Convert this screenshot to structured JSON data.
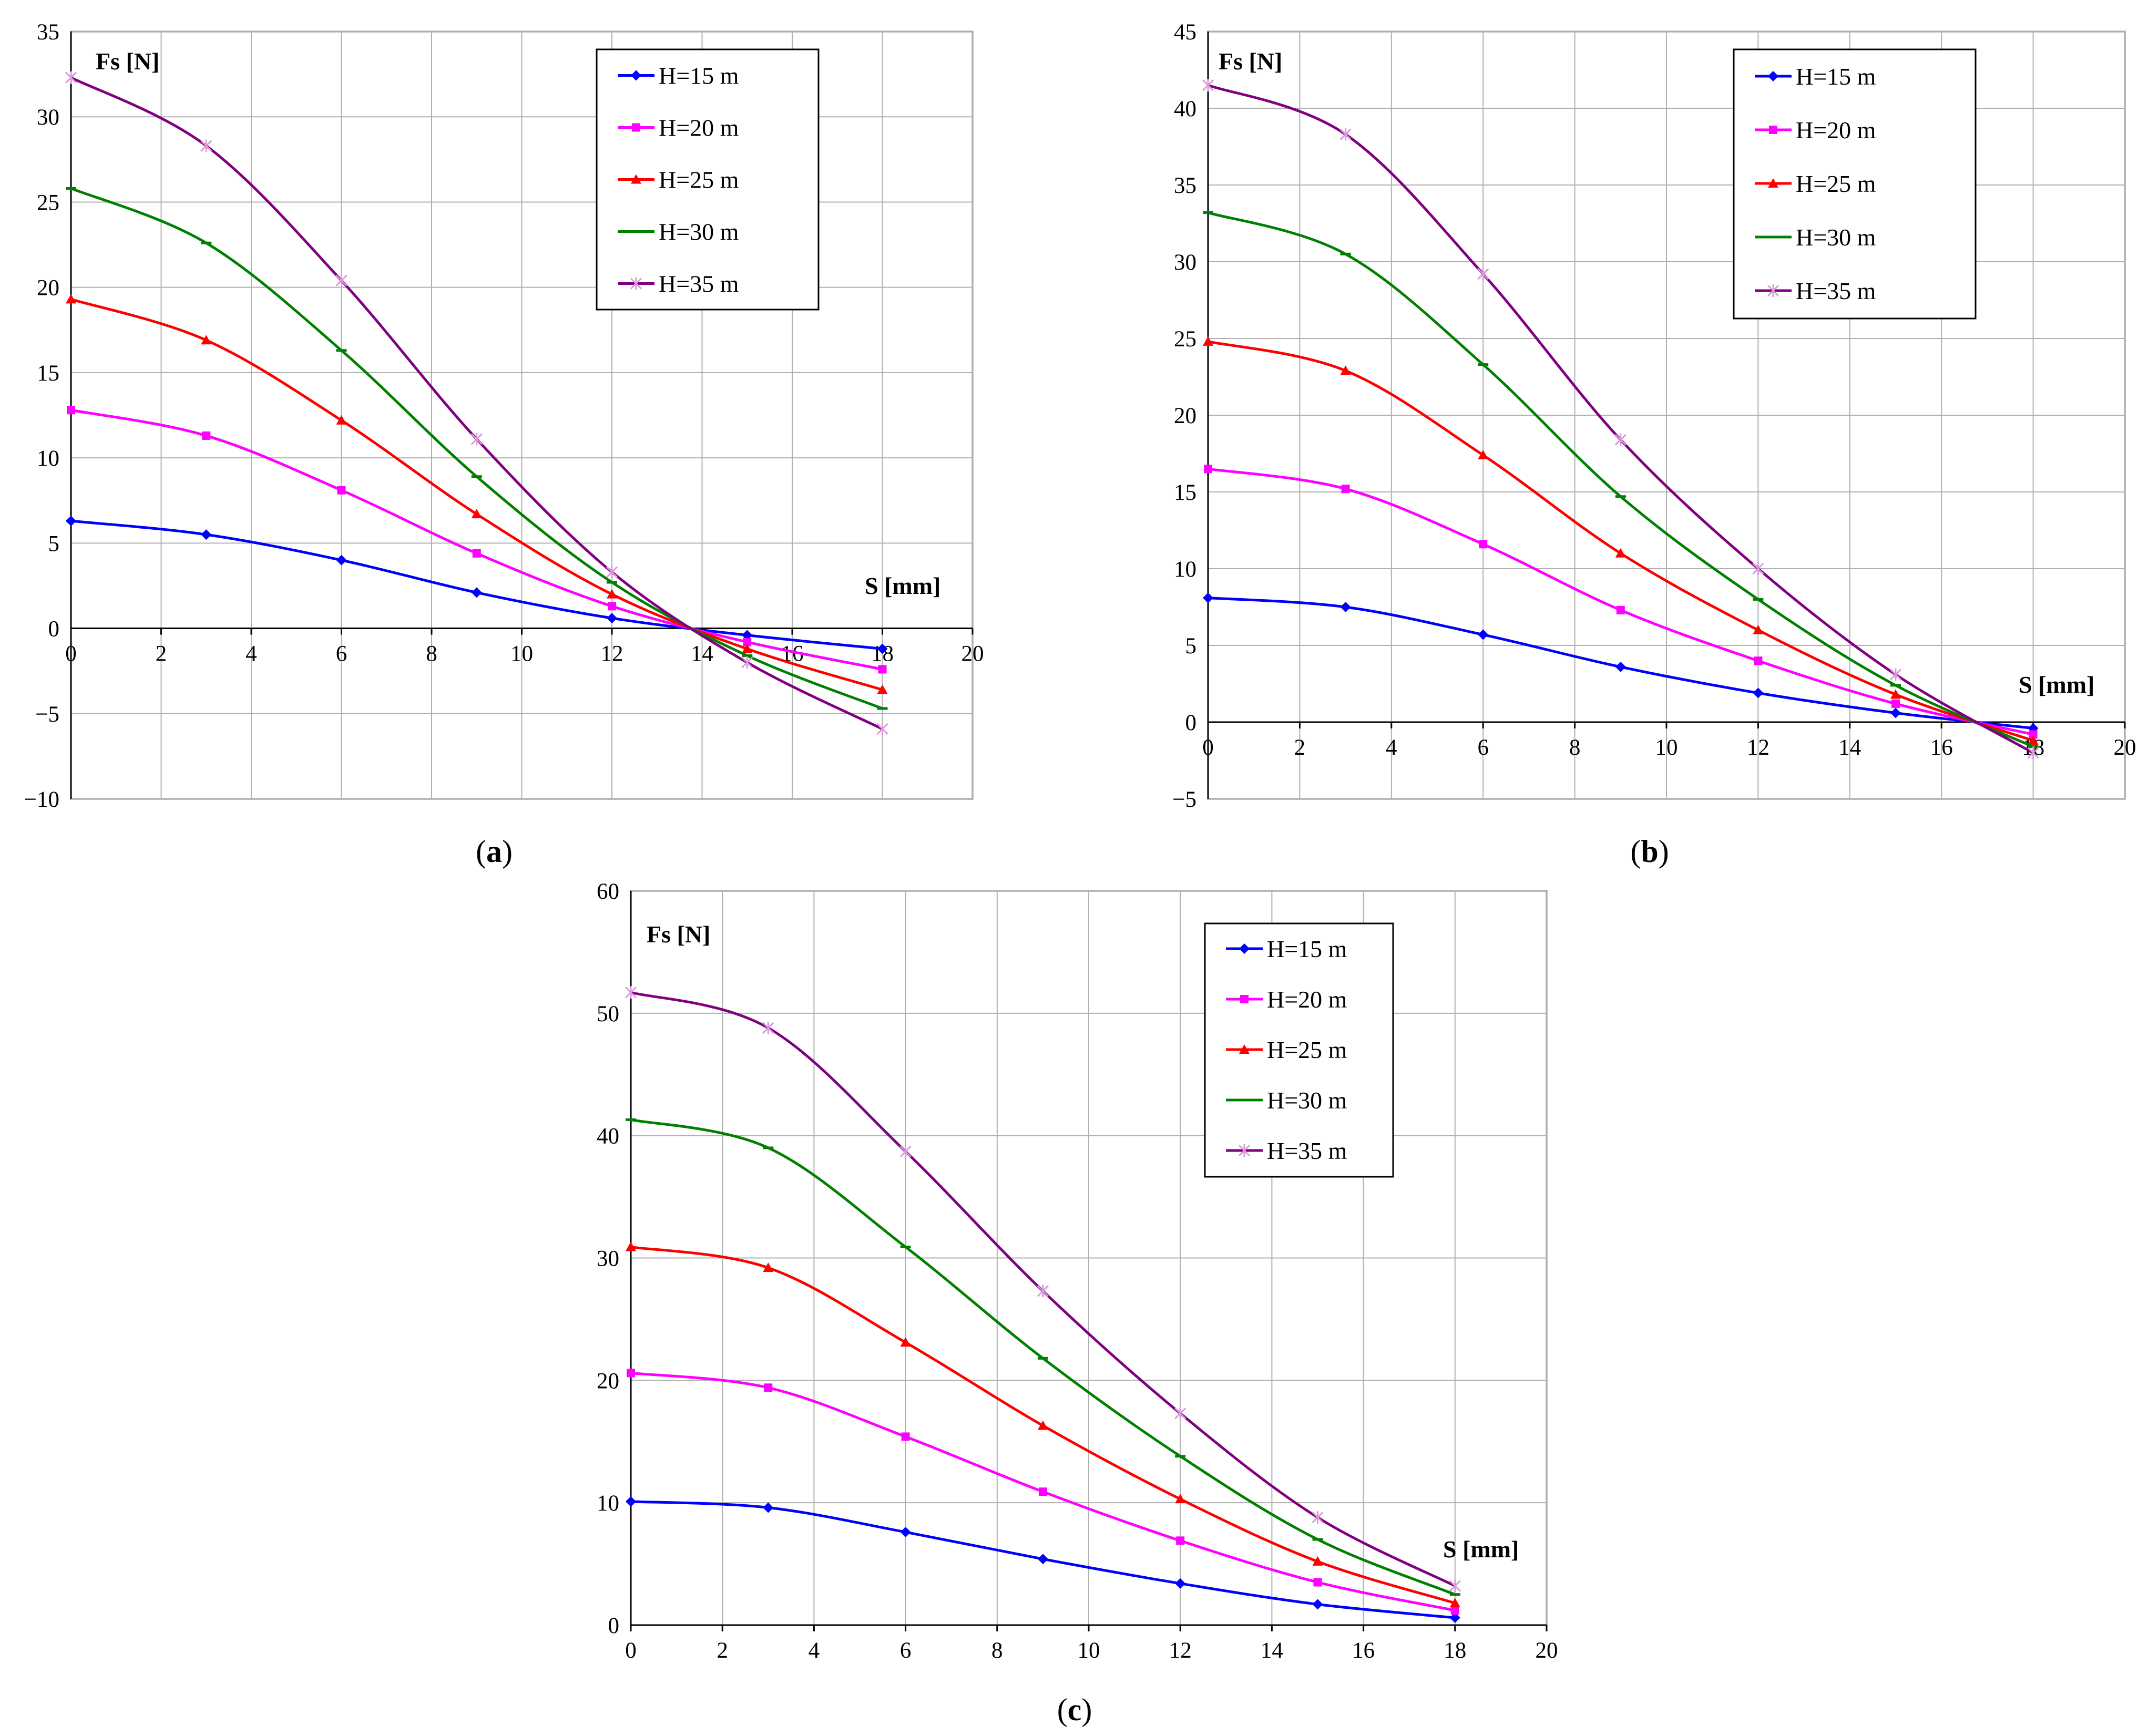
{
  "chart_data": [
    {
      "type": "line",
      "caption": "a",
      "ylabel": "Fs [N]",
      "xlabel": "S [mm]",
      "xlim": [
        0,
        20
      ],
      "ylim": [
        -10,
        35
      ],
      "xticks": [
        0,
        2,
        4,
        6,
        8,
        10,
        12,
        14,
        16,
        18,
        20
      ],
      "yticks": [
        -10,
        -5,
        0,
        5,
        10,
        15,
        20,
        25,
        30,
        35
      ],
      "legend_position": "top-right",
      "grid": true,
      "x": [
        0,
        3,
        6,
        9,
        12,
        15,
        18
      ],
      "series": [
        {
          "name": "H=15 m",
          "color": "#0000ff",
          "marker": "diamond",
          "values": [
            6.3,
            5.5,
            4.0,
            2.1,
            0.6,
            -0.4,
            -1.2
          ]
        },
        {
          "name": "H=20 m",
          "color": "#ff00ff",
          "marker": "square",
          "values": [
            12.8,
            11.3,
            8.1,
            4.4,
            1.3,
            -0.8,
            -2.4
          ]
        },
        {
          "name": "H=25 m",
          "color": "#ff0000",
          "marker": "triangle",
          "values": [
            19.3,
            16.9,
            12.2,
            6.7,
            2.0,
            -1.2,
            -3.6
          ]
        },
        {
          "name": "H=30 m",
          "color": "#008000",
          "marker": "dash",
          "values": [
            25.8,
            22.6,
            16.3,
            8.9,
            2.7,
            -1.6,
            -4.7
          ]
        },
        {
          "name": "H=35 m",
          "color": "#800080",
          "marker": "star",
          "values": [
            32.3,
            28.3,
            20.4,
            11.1,
            3.3,
            -2.0,
            -5.9
          ]
        }
      ]
    },
    {
      "type": "line",
      "caption": "b",
      "ylabel": "Fs [N]",
      "xlabel": "S [mm]",
      "xlim": [
        0,
        20
      ],
      "ylim": [
        -5,
        45
      ],
      "xticks": [
        0,
        2,
        4,
        6,
        8,
        10,
        12,
        14,
        16,
        18,
        20
      ],
      "yticks": [
        -5,
        0,
        5,
        10,
        15,
        20,
        25,
        30,
        35,
        40,
        45
      ],
      "legend_position": "top-right",
      "grid": true,
      "x": [
        0,
        3,
        6,
        9,
        12,
        15,
        18
      ],
      "series": [
        {
          "name": "H=15 m",
          "color": "#0000ff",
          "marker": "diamond",
          "values": [
            8.1,
            7.5,
            5.7,
            3.6,
            1.9,
            0.6,
            -0.4
          ]
        },
        {
          "name": "H=20 m",
          "color": "#ff00ff",
          "marker": "square",
          "values": [
            16.5,
            15.2,
            11.6,
            7.3,
            4.0,
            1.2,
            -0.8
          ]
        },
        {
          "name": "H=25 m",
          "color": "#ff0000",
          "marker": "triangle",
          "values": [
            24.8,
            22.9,
            17.4,
            11.0,
            6.0,
            1.8,
            -1.2
          ]
        },
        {
          "name": "H=30 m",
          "color": "#008000",
          "marker": "dash",
          "values": [
            33.2,
            30.5,
            23.3,
            14.7,
            8.0,
            2.4,
            -1.6
          ]
        },
        {
          "name": "H=35 m",
          "color": "#800080",
          "marker": "star",
          "values": [
            41.5,
            38.3,
            29.2,
            18.4,
            10.0,
            3.1,
            -2.0
          ]
        }
      ]
    },
    {
      "type": "line",
      "caption": "c",
      "ylabel": "Fs [N]",
      "xlabel": "S [mm]",
      "xlim": [
        0,
        20
      ],
      "ylim": [
        0,
        60
      ],
      "xticks": [
        0,
        2,
        4,
        6,
        8,
        10,
        12,
        14,
        16,
        18,
        20
      ],
      "yticks": [
        0,
        10,
        20,
        30,
        40,
        50,
        60
      ],
      "legend_position": "top-right",
      "grid": true,
      "x": [
        0,
        3,
        6,
        9,
        12,
        15,
        18
      ],
      "series": [
        {
          "name": "H=15 m",
          "color": "#0000ff",
          "marker": "diamond",
          "values": [
            10.1,
            9.6,
            7.6,
            5.4,
            3.4,
            1.7,
            0.6
          ]
        },
        {
          "name": "H=20 m",
          "color": "#ff00ff",
          "marker": "square",
          "values": [
            20.6,
            19.4,
            15.4,
            10.9,
            6.9,
            3.5,
            1.2
          ]
        },
        {
          "name": "H=25 m",
          "color": "#ff0000",
          "marker": "triangle",
          "values": [
            30.9,
            29.2,
            23.1,
            16.3,
            10.3,
            5.2,
            1.8
          ]
        },
        {
          "name": "H=30 m",
          "color": "#008000",
          "marker": "dash",
          "values": [
            41.3,
            39.0,
            30.9,
            21.8,
            13.8,
            7.0,
            2.5
          ]
        },
        {
          "name": "H=35 m",
          "color": "#800080",
          "marker": "star",
          "values": [
            51.7,
            48.8,
            38.7,
            27.3,
            17.3,
            8.8,
            3.2
          ]
        }
      ]
    }
  ]
}
